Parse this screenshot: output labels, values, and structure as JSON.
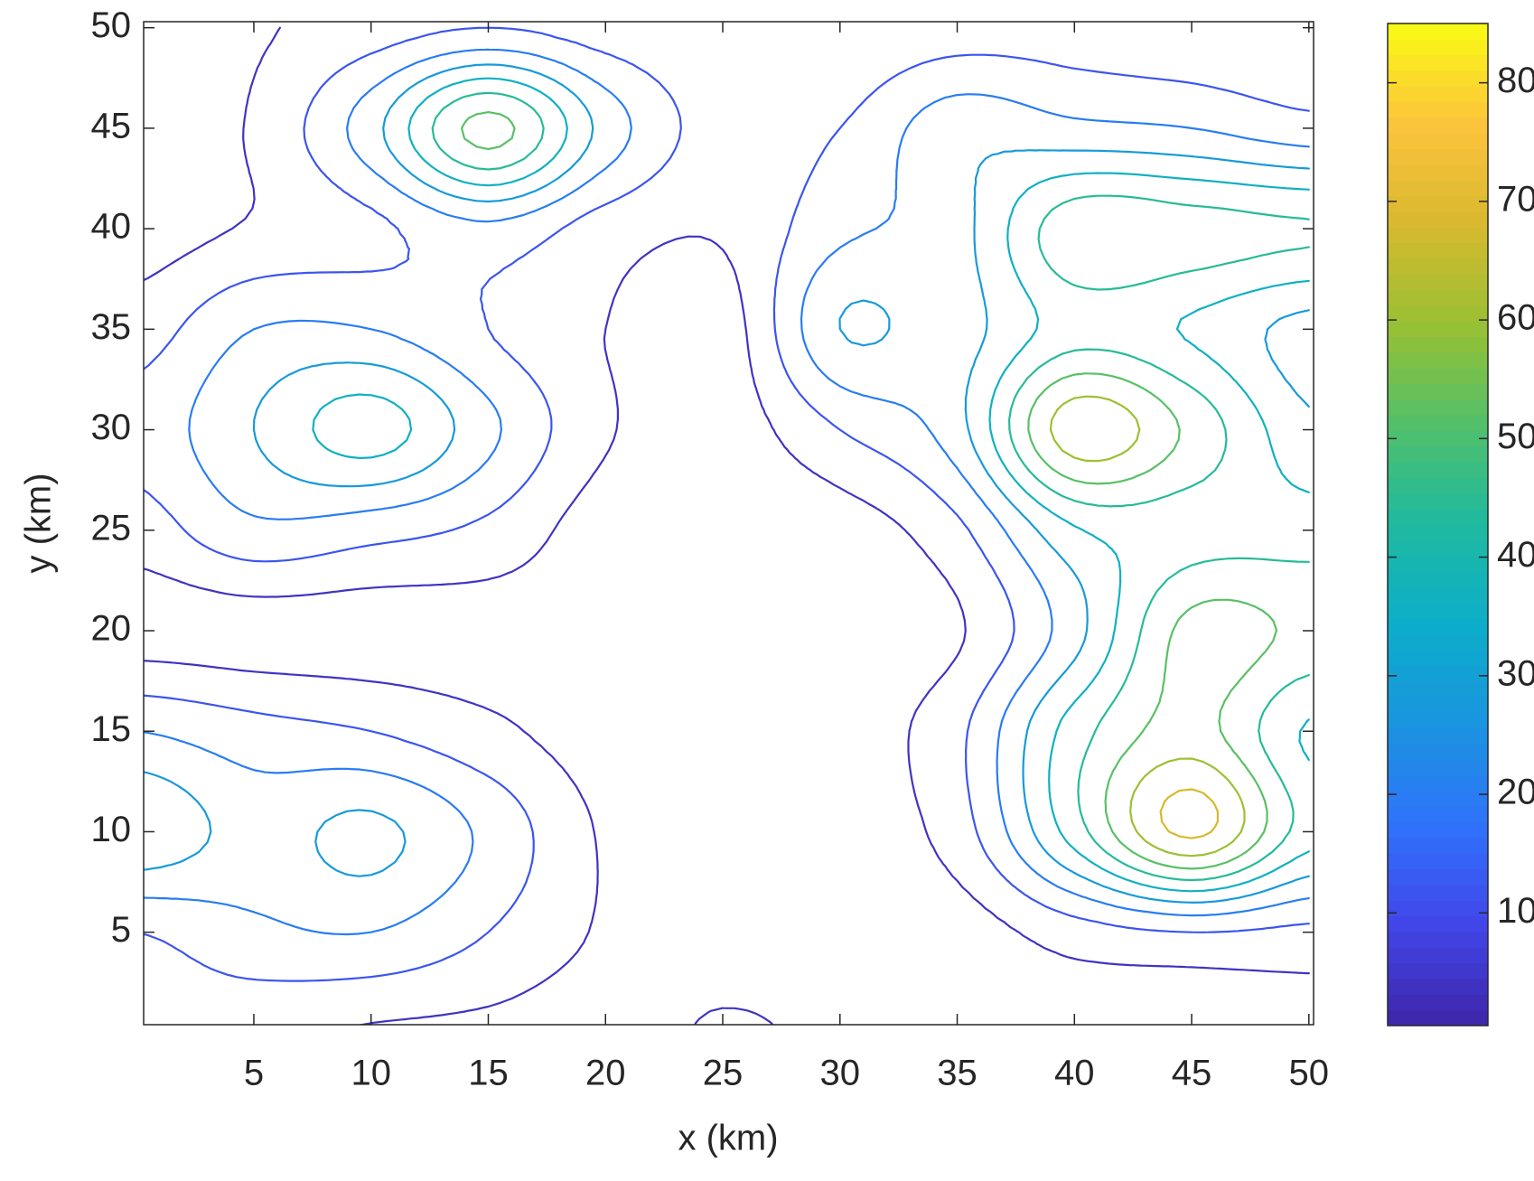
{
  "chart_data": {
    "type": "contour",
    "xlabel": "x (km)",
    "ylabel": "y (km)",
    "xlim": [
      0.3,
      50.2
    ],
    "ylim": [
      0.4,
      50.3
    ],
    "xticks": [
      5,
      10,
      15,
      20,
      25,
      30,
      35,
      40,
      45,
      50
    ],
    "yticks": [
      5,
      10,
      15,
      20,
      25,
      30,
      35,
      40,
      45,
      50
    ],
    "x": [
      0,
      5,
      10,
      15,
      20,
      25,
      30,
      35,
      40,
      45,
      50
    ],
    "y": [
      0,
      5,
      10,
      15,
      20,
      25,
      30,
      35,
      40,
      45,
      50
    ],
    "z": [
      [
        8,
        6,
        3,
        2,
        0,
        5,
        2,
        0,
        0,
        0,
        0
      ],
      [
        12,
        18,
        20,
        12,
        3,
        0,
        0,
        0,
        8,
        12,
        10
      ],
      [
        35,
        25,
        30,
        18,
        3,
        0,
        0,
        8,
        40,
        70,
        40
      ],
      [
        20,
        15,
        12,
        6,
        0,
        0,
        0,
        10,
        40,
        55,
        35
      ],
      [
        0,
        0,
        0,
        0,
        0,
        0,
        0,
        3,
        25,
        55,
        50
      ],
      [
        8,
        18,
        15,
        10,
        0,
        0,
        0,
        10,
        35,
        40,
        40
      ],
      [
        15,
        28,
        40,
        22,
        5,
        0,
        12,
        25,
        65,
        50,
        30
      ],
      [
        8,
        20,
        20,
        12,
        4,
        0,
        28,
        25,
        40,
        35,
        25
      ],
      [
        0,
        5,
        10,
        18,
        8,
        5,
        18,
        25,
        50,
        48,
        45
      ],
      [
        0,
        5,
        25,
        55,
        25,
        8,
        12,
        25,
        22,
        20,
        15
      ],
      [
        0,
        3,
        8,
        12,
        8,
        5,
        5,
        8,
        8,
        6,
        5
      ]
    ],
    "levels": [
      4,
      12,
      20,
      28,
      36,
      44,
      52,
      60,
      68,
      76
    ],
    "clim": [
      0.5,
      85
    ],
    "cticks": [
      10,
      20,
      30,
      40,
      50,
      60,
      70,
      80
    ],
    "colormap": [
      "#3e26a8",
      "#4245e9",
      "#2f72fb",
      "#1b94e0",
      "#0cadca",
      "#1ebaa0",
      "#52c06a",
      "#99c032",
      "#d8b92f",
      "#fdc33c",
      "#f9fb14"
    ]
  }
}
